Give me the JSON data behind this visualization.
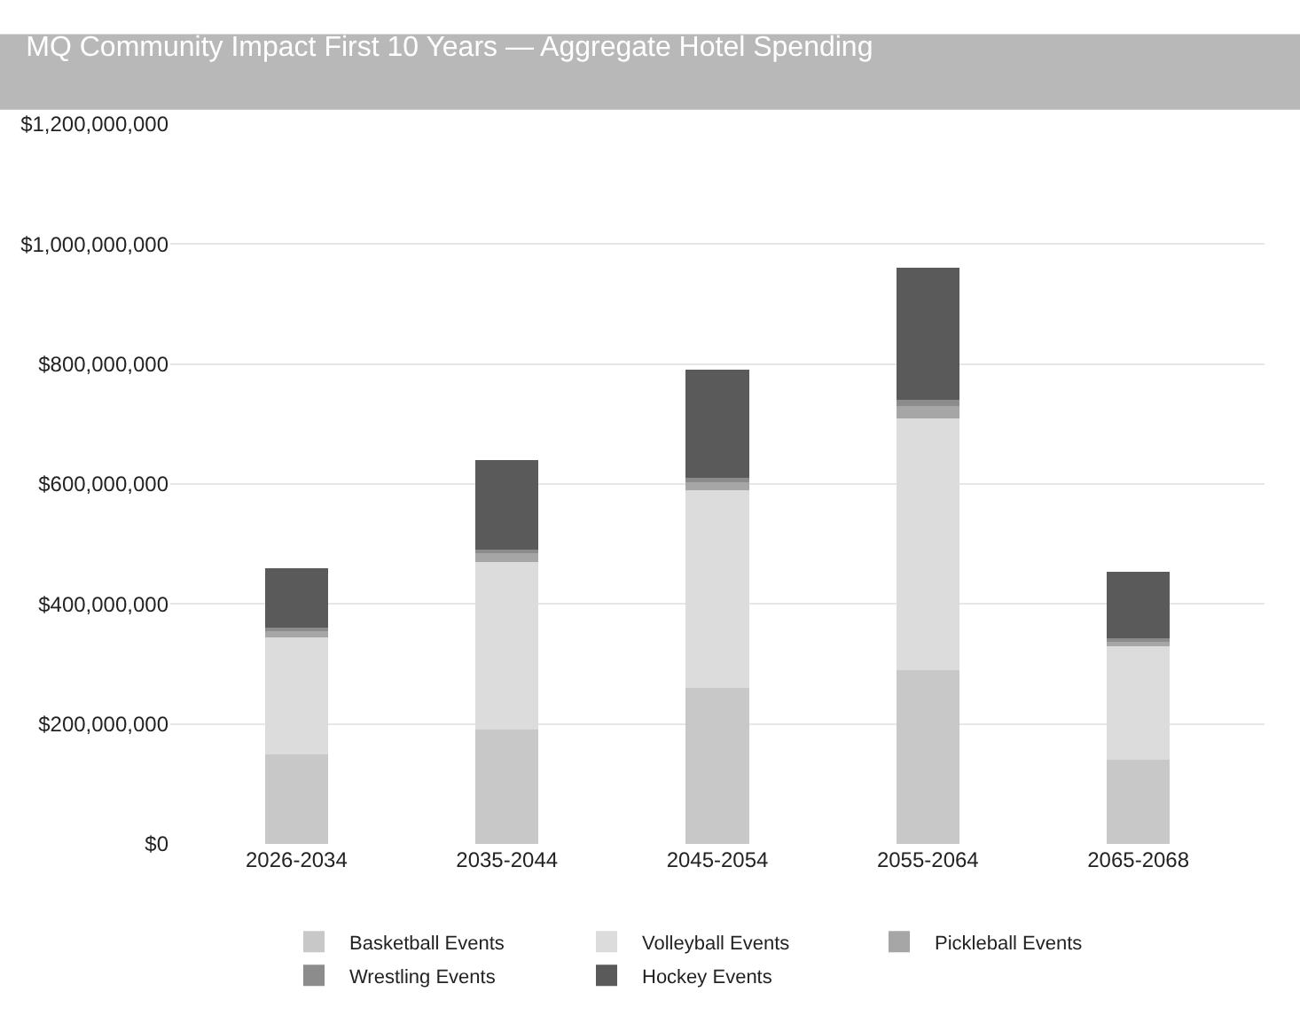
{
  "chart_data": {
    "type": "bar",
    "stacked": true,
    "title": "MQ Community Impact First 10 Years — Aggregate Hotel Spending",
    "categories": [
      "2026-2034",
      "2035-2044",
      "2045-2054",
      "2055-2064",
      "2065-2068"
    ],
    "series": [
      {
        "name": "Basketball Events",
        "color": "#c8c8c8",
        "values": [
          150000000,
          190000000,
          260000000,
          290000000,
          140000000
        ]
      },
      {
        "name": "Volleyball Events",
        "color": "#dcdcdc",
        "values": [
          195000000,
          280000000,
          330000000,
          420000000,
          190000000
        ]
      },
      {
        "name": "Pickleball Events",
        "color": "#a6a6a6",
        "values": [
          10000000,
          15000000,
          15000000,
          20000000,
          8000000
        ]
      },
      {
        "name": "Wrestling Events",
        "color": "#8c8c8c",
        "values": [
          5000000,
          5000000,
          5000000,
          10000000,
          5000000
        ]
      },
      {
        "name": "Hockey Events",
        "color": "#5a5a5a",
        "values": [
          100000000,
          150000000,
          180000000,
          220000000,
          110000000
        ]
      }
    ],
    "ylim": [
      0,
      1200000000
    ],
    "yticks": [
      {
        "value": 0,
        "label": "$0"
      },
      {
        "value": 200000000,
        "label": "$200,000,000"
      },
      {
        "value": 400000000,
        "label": "$400,000,000"
      },
      {
        "value": 600000000,
        "label": "$600,000,000"
      },
      {
        "value": 800000000,
        "label": "$800,000,000"
      },
      {
        "value": 1000000000,
        "label": "$1,000,000,000"
      },
      {
        "value": 1200000000,
        "label": "$1,200,000,000"
      }
    ],
    "grid": "y",
    "legend": "bottom"
  }
}
